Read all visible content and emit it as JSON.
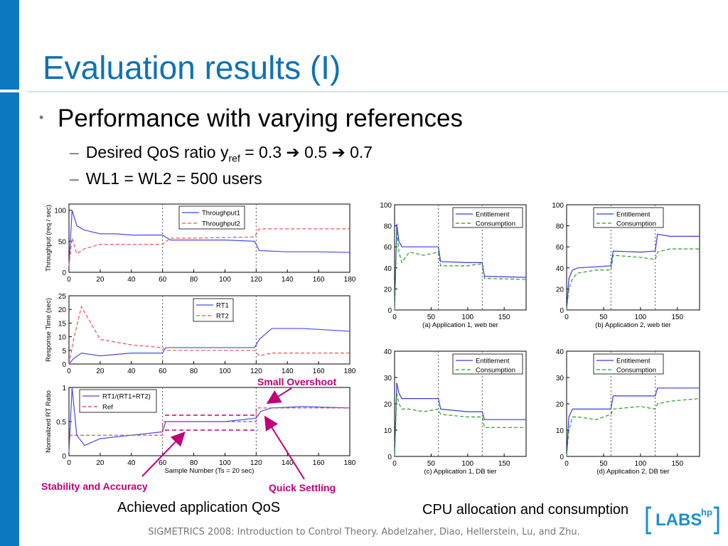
{
  "slide": {
    "title": "Evaluation results (I)",
    "bullet": "Performance with varying references",
    "sub1_pre": "Desired QoS ratio y",
    "sub1_subscript": "ref",
    "sub1_post": " = 0.3 ➔ 0.5 ➔ 0.7",
    "sub2": "WL1 = WL2 = 500 users",
    "caption_left": "Achieved application QoS",
    "caption_right": "CPU allocation and consumption",
    "annot_overshoot": "Small Overshoot",
    "annot_stability": "Stability and Accuracy",
    "annot_settling": "Quick Settling",
    "footer": "SIGMETRICS 2008: Introduction to Control Theory. Abdelzaher, Diao, Hellerstein, Lu, and Zhu.",
    "logo_text": "LABS",
    "logo_sup": "hp",
    "colors": {
      "title": "#0e72b5",
      "accent": "#c0007a",
      "sidebar": "#0c79c0"
    }
  },
  "chart_data": [
    {
      "type": "line",
      "ylabel": "Throughput (req / sec)",
      "xlim": [
        0,
        180
      ],
      "ylim": [
        0,
        110
      ],
      "xticks": [
        "0",
        "20",
        "40",
        "60",
        "80",
        "100",
        "120",
        "140",
        "160",
        "180"
      ],
      "yticks": [
        "0",
        "50",
        "100"
      ],
      "vlines": [
        60,
        120
      ],
      "legend": "top-right",
      "series": [
        {
          "name": "Throughput1",
          "color": "#4a4af0",
          "dash": false,
          "x": [
            0,
            2,
            5,
            10,
            20,
            30,
            40,
            50,
            60,
            65,
            80,
            100,
            119,
            122,
            140,
            160,
            180
          ],
          "y": [
            10,
            100,
            75,
            68,
            62,
            62,
            60,
            60,
            60,
            52,
            52,
            52,
            50,
            35,
            33,
            33,
            32
          ]
        },
        {
          "name": "Throughput2",
          "color": "#f05050",
          "dash": true,
          "x": [
            0,
            2,
            5,
            10,
            20,
            30,
            40,
            50,
            60,
            65,
            80,
            100,
            119,
            122,
            140,
            160,
            180
          ],
          "y": [
            10,
            55,
            30,
            38,
            45,
            45,
            45,
            45,
            45,
            55,
            55,
            56,
            57,
            70,
            70,
            70,
            70
          ]
        }
      ]
    },
    {
      "type": "line",
      "ylabel": "Response Time (sec)",
      "xlim": [
        0,
        180
      ],
      "ylim": [
        0,
        25
      ],
      "xticks": [
        "0",
        "20",
        "40",
        "60",
        "80",
        "100",
        "120",
        "140",
        "160",
        "180"
      ],
      "yticks": [
        "0",
        "5",
        "10",
        "15",
        "20",
        "25"
      ],
      "vlines": [
        60,
        120
      ],
      "legend": "top-right",
      "series": [
        {
          "name": "RT1",
          "color": "#4a4af0",
          "dash": false,
          "x": [
            0,
            3,
            8,
            20,
            40,
            60,
            62,
            80,
            100,
            119,
            122,
            130,
            150,
            180
          ],
          "y": [
            0,
            2,
            4,
            3,
            4,
            4,
            6,
            6,
            6,
            6,
            9,
            13,
            13,
            12
          ]
        },
        {
          "name": "RT2",
          "color": "#f05050",
          "dash": true,
          "x": [
            0,
            3,
            8,
            20,
            40,
            60,
            62,
            80,
            100,
            119,
            122,
            130,
            150,
            180
          ],
          "y": [
            0,
            9,
            21,
            9,
            7,
            6,
            5,
            5,
            5,
            5,
            3,
            4,
            4,
            4
          ]
        }
      ]
    },
    {
      "type": "line",
      "ylabel": "Normalized RT Ratio",
      "xlabel": "Sample Number (Ts = 20 sec)",
      "xlim": [
        0,
        180
      ],
      "ylim": [
        0,
        1
      ],
      "xticks": [
        "0",
        "20",
        "40",
        "60",
        "80",
        "100",
        "120",
        "140",
        "160",
        "180"
      ],
      "yticks": [
        "0",
        "0.5",
        "1"
      ],
      "vlines": [
        60,
        120
      ],
      "legend": "top-left",
      "series": [
        {
          "name": "RT1/(RT1+RT2)",
          "color": "#4a4af0",
          "dash": false,
          "x": [
            0,
            2,
            5,
            10,
            20,
            40,
            60,
            62,
            80,
            100,
            120,
            123,
            130,
            150,
            180
          ],
          "y": [
            0.05,
            1.0,
            0.3,
            0.15,
            0.25,
            0.3,
            0.35,
            0.5,
            0.5,
            0.5,
            0.55,
            0.65,
            0.7,
            0.72,
            0.7
          ]
        },
        {
          "name": "Ref",
          "color": "#d04040",
          "dash": true,
          "x": [
            0,
            60,
            60,
            120,
            120,
            180
          ],
          "y": [
            0.3,
            0.3,
            0.5,
            0.5,
            0.7,
            0.7
          ]
        }
      ]
    },
    {
      "type": "line",
      "xlabel": "(a) Application 1, web tier",
      "xlim": [
        0,
        180
      ],
      "ylim": [
        0,
        100
      ],
      "xticks": [
        "0",
        "50",
        "100",
        "150"
      ],
      "yticks": [
        "0",
        "20",
        "40",
        "60",
        "80",
        "100"
      ],
      "vlines": [
        60,
        120
      ],
      "legend": "top-right",
      "series": [
        {
          "name": "Entitlement",
          "color": "#3a3ae0",
          "dash": false,
          "x": [
            0,
            3,
            6,
            10,
            20,
            40,
            60,
            63,
            100,
            120,
            123,
            180
          ],
          "y": [
            0,
            82,
            65,
            60,
            60,
            60,
            60,
            46,
            45,
            45,
            32,
            31
          ]
        },
        {
          "name": "Consumption",
          "color": "#2c9a2c",
          "dash": true,
          "x": [
            0,
            3,
            6,
            10,
            20,
            40,
            60,
            63,
            100,
            120,
            123,
            180
          ],
          "y": [
            0,
            75,
            55,
            45,
            55,
            52,
            55,
            42,
            42,
            44,
            30,
            29
          ]
        }
      ]
    },
    {
      "type": "line",
      "xlabel": "(b) Application 2, web tier",
      "xlim": [
        0,
        180
      ],
      "ylim": [
        0,
        100
      ],
      "xticks": [
        "0",
        "50",
        "100",
        "150"
      ],
      "yticks": [
        "0",
        "20",
        "40",
        "60",
        "80",
        "100"
      ],
      "vlines": [
        60,
        120
      ],
      "legend": "top-right",
      "series": [
        {
          "name": "Entitlement",
          "color": "#3a3ae0",
          "dash": false,
          "x": [
            0,
            3,
            8,
            15,
            40,
            60,
            63,
            100,
            120,
            123,
            140,
            180
          ],
          "y": [
            0,
            30,
            38,
            40,
            41,
            42,
            56,
            55,
            56,
            72,
            70,
            70
          ]
        },
        {
          "name": "Consumption",
          "color": "#2c9a2c",
          "dash": true,
          "x": [
            0,
            3,
            8,
            15,
            40,
            60,
            63,
            100,
            120,
            123,
            140,
            180
          ],
          "y": [
            0,
            20,
            30,
            35,
            38,
            38,
            52,
            50,
            48,
            55,
            58,
            58
          ]
        }
      ]
    },
    {
      "type": "line",
      "xlabel": "(c) Application 1, DB tier",
      "xlim": [
        0,
        180
      ],
      "ylim": [
        0,
        40
      ],
      "xticks": [
        "0",
        "50",
        "100",
        "150"
      ],
      "yticks": [
        "0",
        "10",
        "20",
        "30",
        "40"
      ],
      "vlines": [
        60,
        120
      ],
      "legend": "top-right",
      "series": [
        {
          "name": "Entitlement",
          "color": "#3a3ae0",
          "dash": false,
          "x": [
            0,
            3,
            6,
            10,
            20,
            40,
            60,
            63,
            100,
            120,
            123,
            180
          ],
          "y": [
            0,
            28,
            24,
            22,
            22,
            22,
            22,
            18,
            17,
            17,
            14,
            14
          ]
        },
        {
          "name": "Consumption",
          "color": "#2c9a2c",
          "dash": true,
          "x": [
            0,
            3,
            6,
            10,
            20,
            40,
            60,
            63,
            100,
            120,
            123,
            180
          ],
          "y": [
            0,
            24,
            20,
            18,
            18,
            17,
            18,
            16,
            15,
            15,
            11,
            11
          ]
        }
      ]
    },
    {
      "type": "line",
      "xlabel": "(d) Application 2, DB tier",
      "xlim": [
        0,
        180
      ],
      "ylim": [
        0,
        40
      ],
      "xticks": [
        "0",
        "50",
        "100",
        "150"
      ],
      "yticks": [
        "0",
        "10",
        "20",
        "30",
        "40"
      ],
      "vlines": [
        60,
        120
      ],
      "legend": "top-right",
      "series": [
        {
          "name": "Entitlement",
          "color": "#3a3ae0",
          "dash": false,
          "x": [
            0,
            3,
            8,
            15,
            40,
            60,
            63,
            100,
            120,
            123,
            140,
            180
          ],
          "y": [
            0,
            15,
            18,
            18,
            18,
            18,
            23,
            23,
            23,
            26,
            26,
            26
          ]
        },
        {
          "name": "Consumption",
          "color": "#2c9a2c",
          "dash": true,
          "x": [
            0,
            3,
            8,
            15,
            40,
            60,
            63,
            100,
            120,
            123,
            140,
            180
          ],
          "y": [
            0,
            10,
            15,
            15,
            14,
            16,
            18,
            19,
            18,
            20,
            21,
            22
          ]
        }
      ]
    }
  ]
}
